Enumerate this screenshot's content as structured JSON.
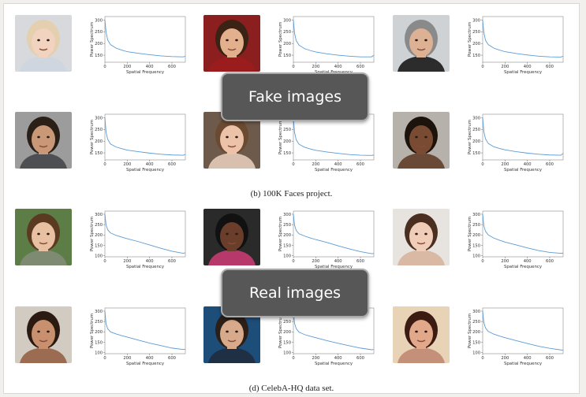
{
  "captions": {
    "top": "(b) 100K Faces project.",
    "bottom": "(d) CelebA-HQ data set."
  },
  "overlays": {
    "fake": "Fake images",
    "real": "Real images"
  },
  "axis": {
    "xlabel": "Spatial Frequency",
    "ylabel": "Power Spectrum",
    "xticks": [
      "0",
      "200",
      "400",
      "600"
    ]
  },
  "colors": {
    "curve": "#5b9bd5",
    "overlay_bg": "#575757",
    "overlay_border": "#a9a9a9"
  },
  "chart_data": [
    {
      "type": "line",
      "group": "fake",
      "xlabel": "Spatial Frequency",
      "ylabel": "Power Spectrum",
      "xlim": [
        0,
        720
      ],
      "ylim": [
        120,
        315
      ],
      "yticks": [
        150,
        200,
        250,
        300
      ],
      "x": [
        0,
        10,
        25,
        50,
        100,
        150,
        200,
        300,
        400,
        500,
        600,
        700,
        720
      ],
      "y": [
        300,
        250,
        215,
        195,
        180,
        172,
        165,
        158,
        152,
        147,
        144,
        143,
        145
      ]
    },
    {
      "type": "line",
      "group": "fake",
      "xlabel": "Spatial Frequency",
      "ylabel": "Power Spectrum",
      "xlim": [
        0,
        720
      ],
      "ylim": [
        120,
        315
      ],
      "yticks": [
        150,
        200,
        250,
        300
      ],
      "x": [
        0,
        10,
        25,
        50,
        100,
        150,
        200,
        300,
        400,
        500,
        600,
        700,
        720
      ],
      "y": [
        300,
        245,
        212,
        193,
        178,
        170,
        164,
        156,
        150,
        146,
        143,
        143,
        150
      ]
    },
    {
      "type": "line",
      "group": "fake",
      "xlabel": "Spatial Frequency",
      "ylabel": "Power Spectrum",
      "xlim": [
        0,
        720
      ],
      "ylim": [
        120,
        315
      ],
      "yticks": [
        150,
        200,
        250,
        300
      ],
      "x": [
        0,
        10,
        25,
        50,
        100,
        150,
        200,
        300,
        400,
        500,
        600,
        700,
        720
      ],
      "y": [
        300,
        248,
        214,
        195,
        180,
        172,
        165,
        157,
        151,
        146,
        143,
        142,
        146
      ]
    },
    {
      "type": "line",
      "group": "fake",
      "xlabel": "Spatial Frequency",
      "ylabel": "Power Spectrum",
      "xlim": [
        0,
        720
      ],
      "ylim": [
        120,
        315
      ],
      "yticks": [
        150,
        200,
        250,
        300
      ],
      "x": [
        0,
        10,
        25,
        50,
        100,
        150,
        200,
        300,
        400,
        500,
        600,
        700,
        720
      ],
      "y": [
        300,
        240,
        208,
        188,
        175,
        168,
        162,
        155,
        149,
        144,
        141,
        140,
        143
      ]
    },
    {
      "type": "line",
      "group": "fake",
      "xlabel": "Spatial Frequency",
      "ylabel": "Power Spectrum",
      "xlim": [
        0,
        720
      ],
      "ylim": [
        120,
        315
      ],
      "yticks": [
        150,
        200,
        250,
        300
      ],
      "x": [
        0,
        10,
        25,
        50,
        100,
        150,
        200,
        300,
        400,
        500,
        600,
        700,
        720
      ],
      "y": [
        300,
        238,
        206,
        187,
        174,
        167,
        161,
        154,
        148,
        143,
        140,
        139,
        141
      ]
    },
    {
      "type": "line",
      "group": "fake",
      "xlabel": "Spatial Frequency",
      "ylabel": "Power Spectrum",
      "xlim": [
        0,
        720
      ],
      "ylim": [
        120,
        315
      ],
      "yticks": [
        150,
        200,
        250,
        300
      ],
      "x": [
        0,
        10,
        25,
        50,
        100,
        150,
        200,
        300,
        400,
        500,
        600,
        700,
        720
      ],
      "y": [
        300,
        242,
        210,
        190,
        176,
        169,
        163,
        155,
        149,
        144,
        141,
        140,
        148
      ]
    },
    {
      "type": "line",
      "group": "real",
      "xlabel": "Spatial Frequency",
      "ylabel": "Power Spectrum",
      "xlim": [
        0,
        720
      ],
      "ylim": [
        95,
        315
      ],
      "yticks": [
        100,
        150,
        200,
        250,
        300
      ],
      "x": [
        0,
        10,
        25,
        50,
        100,
        150,
        200,
        300,
        400,
        500,
        600,
        700,
        720
      ],
      "y": [
        300,
        250,
        225,
        210,
        198,
        190,
        182,
        168,
        152,
        136,
        122,
        112,
        114
      ]
    },
    {
      "type": "line",
      "group": "real",
      "xlabel": "Spatial Frequency",
      "ylabel": "Power Spectrum",
      "xlim": [
        0,
        720
      ],
      "ylim": [
        95,
        315
      ],
      "yticks": [
        100,
        150,
        200,
        250,
        300
      ],
      "x": [
        0,
        10,
        25,
        50,
        100,
        150,
        200,
        300,
        400,
        500,
        600,
        700,
        720
      ],
      "y": [
        300,
        248,
        222,
        206,
        195,
        186,
        178,
        164,
        148,
        133,
        120,
        110,
        111
      ]
    },
    {
      "type": "line",
      "group": "real",
      "xlabel": "Spatial Frequency",
      "ylabel": "Power Spectrum",
      "xlim": [
        0,
        720
      ],
      "ylim": [
        95,
        315
      ],
      "yticks": [
        100,
        150,
        200,
        250,
        300
      ],
      "x": [
        0,
        10,
        25,
        50,
        100,
        150,
        200,
        300,
        400,
        500,
        600,
        700,
        720
      ],
      "y": [
        300,
        245,
        218,
        200,
        185,
        175,
        166,
        152,
        138,
        125,
        116,
        112,
        113
      ]
    },
    {
      "type": "line",
      "group": "real",
      "xlabel": "Spatial Frequency",
      "ylabel": "Power Spectrum",
      "xlim": [
        0,
        720
      ],
      "ylim": [
        95,
        315
      ],
      "yticks": [
        100,
        150,
        200,
        250,
        300
      ],
      "x": [
        0,
        10,
        25,
        50,
        100,
        150,
        200,
        300,
        400,
        500,
        600,
        700,
        720
      ],
      "y": [
        300,
        240,
        215,
        200,
        190,
        182,
        175,
        160,
        146,
        134,
        122,
        115,
        116
      ]
    },
    {
      "type": "line",
      "group": "real",
      "xlabel": "Spatial Frequency",
      "ylabel": "Power Spectrum",
      "xlim": [
        0,
        720
      ],
      "ylim": [
        95,
        315
      ],
      "yticks": [
        100,
        150,
        200,
        250,
        300
      ],
      "x": [
        0,
        10,
        25,
        50,
        100,
        150,
        200,
        300,
        400,
        500,
        600,
        700,
        720
      ],
      "y": [
        300,
        242,
        216,
        199,
        187,
        179,
        172,
        158,
        145,
        133,
        122,
        114,
        115
      ]
    },
    {
      "type": "line",
      "group": "real",
      "xlabel": "Spatial Frequency",
      "ylabel": "Power Spectrum",
      "xlim": [
        0,
        720
      ],
      "ylim": [
        95,
        315
      ],
      "yticks": [
        100,
        150,
        200,
        250,
        300
      ],
      "x": [
        0,
        10,
        25,
        50,
        100,
        150,
        200,
        300,
        400,
        500,
        600,
        700,
        720
      ],
      "y": [
        300,
        246,
        219,
        202,
        189,
        180,
        172,
        158,
        144,
        131,
        121,
        113,
        112
      ]
    }
  ]
}
